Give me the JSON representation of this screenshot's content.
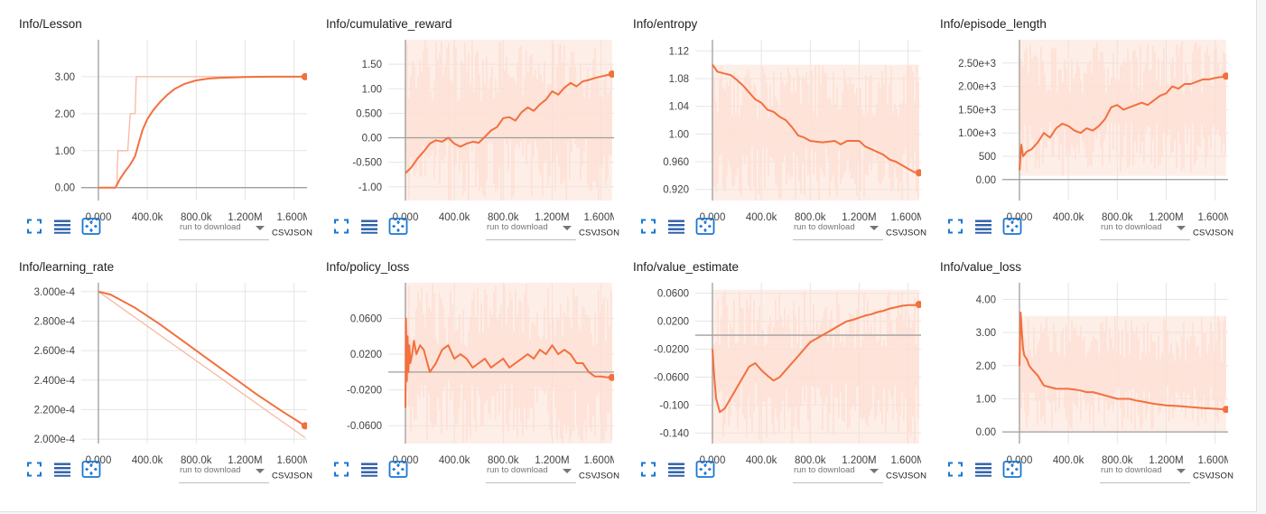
{
  "colors": {
    "smoothed": "#f2703e",
    "raw": "#fde0d5",
    "axis": "#9e9e9e",
    "grid": "#e5e5e5",
    "icon": "#1976d2",
    "icon_dark": "#2e5fa8"
  },
  "icons": [
    "fullscreen-icon",
    "list-icon",
    "fit-domain-icon"
  ],
  "download": {
    "placeholder": "run to download",
    "csv": "CSV",
    "json": "JSON"
  },
  "chart_data": [
    {
      "type": "line",
      "title": "Info/Lesson",
      "xlim": [
        -140000,
        1780000
      ],
      "ylim": [
        -0.35,
        4.0
      ],
      "xticks": [
        0,
        400000,
        800000,
        1200000,
        1600000
      ],
      "xtick_labels": [
        "0.000",
        "400.0k",
        "800.0k",
        "1.200M",
        "1.600M"
      ],
      "yticks": [
        0,
        1,
        2,
        3
      ],
      "ytick_labels": [
        "0.00",
        "1.00",
        "2.00",
        "3.00"
      ],
      "series": [
        {
          "x": [
            0,
            150000,
            160000,
            170000,
            230000,
            240000,
            260000,
            270000,
            300000,
            310000,
            1690000
          ],
          "y": [
            0,
            0,
            1,
            1,
            1,
            1,
            2,
            2,
            2,
            3,
            3
          ]
        },
        {
          "x": [
            0,
            140000,
            180000,
            220000,
            260000,
            300000,
            330000,
            360000,
            400000,
            450000,
            500000,
            560000,
            620000,
            700000,
            800000,
            900000,
            1000000,
            1200000,
            1400000,
            1690000
          ],
          "y": [
            0,
            0,
            0.25,
            0.45,
            0.62,
            0.85,
            1.2,
            1.55,
            1.85,
            2.1,
            2.3,
            2.5,
            2.66,
            2.8,
            2.9,
            2.95,
            2.97,
            2.99,
            3.0,
            3.0
          ]
        }
      ]
    },
    {
      "type": "line",
      "title": "Info/cumulative_reward",
      "xlim": [
        -140000,
        1780000
      ],
      "ylim": [
        -1.28,
        2.0
      ],
      "xticks": [
        0,
        400000,
        800000,
        1200000,
        1600000
      ],
      "xtick_labels": [
        "0.000",
        "400.0k",
        "800.0k",
        "1.200M",
        "1.600M"
      ],
      "yticks": [
        -1,
        -0.5,
        0,
        0.5,
        1,
        1.5
      ],
      "ytick_labels": [
        "-1.00",
        "-0.500",
        "0.00",
        "0.500",
        "1.00",
        "1.50"
      ],
      "raw_band": [
        -1.28,
        2.0
      ],
      "series": [
        {
          "x": [
            0,
            50000,
            100000,
            150000,
            200000,
            250000,
            300000,
            350000,
            400000,
            450000,
            500000,
            550000,
            600000,
            650000,
            700000,
            750000,
            800000,
            850000,
            900000,
            950000,
            1000000,
            1050000,
            1100000,
            1150000,
            1200000,
            1250000,
            1300000,
            1350000,
            1400000,
            1450000,
            1500000,
            1550000,
            1600000,
            1650000,
            1690000
          ],
          "y": [
            -0.72,
            -0.6,
            -0.42,
            -0.28,
            -0.12,
            -0.05,
            -0.08,
            0.0,
            -0.12,
            -0.18,
            -0.12,
            -0.08,
            -0.1,
            0.02,
            0.15,
            0.22,
            0.4,
            0.42,
            0.35,
            0.52,
            0.62,
            0.55,
            0.68,
            0.78,
            0.95,
            0.88,
            1.02,
            1.12,
            1.05,
            1.15,
            1.18,
            1.22,
            1.25,
            1.28,
            1.3
          ]
        }
      ]
    },
    {
      "type": "line",
      "title": "Info/entropy",
      "xlim": [
        -140000,
        1780000
      ],
      "ylim": [
        0.904,
        1.136
      ],
      "xticks": [
        0,
        400000,
        800000,
        1200000,
        1600000
      ],
      "xtick_labels": [
        "0.000",
        "400.0k",
        "800.0k",
        "1.200M",
        "1.600M"
      ],
      "yticks": [
        0.92,
        0.96,
        1.0,
        1.04,
        1.08,
        1.12
      ],
      "ytick_labels": [
        "0.920",
        "0.960",
        "1.00",
        "1.04",
        "1.08",
        "1.12"
      ],
      "raw_band": [
        0.904,
        1.1
      ],
      "series": [
        {
          "x": [
            0,
            40000,
            80000,
            150000,
            200000,
            250000,
            300000,
            350000,
            400000,
            450000,
            500000,
            550000,
            600000,
            650000,
            700000,
            750000,
            800000,
            900000,
            1000000,
            1050000,
            1100000,
            1200000,
            1250000,
            1300000,
            1400000,
            1450000,
            1500000,
            1550000,
            1600000,
            1650000,
            1690000
          ],
          "y": [
            1.1,
            1.09,
            1.088,
            1.085,
            1.078,
            1.07,
            1.06,
            1.05,
            1.045,
            1.035,
            1.032,
            1.025,
            1.02,
            1.01,
            0.998,
            0.995,
            0.99,
            0.988,
            0.99,
            0.985,
            0.99,
            0.99,
            0.982,
            0.978,
            0.97,
            0.963,
            0.96,
            0.955,
            0.95,
            0.945,
            0.944
          ]
        }
      ]
    },
    {
      "type": "line",
      "title": "Info/episode_length",
      "xlim": [
        -140000,
        1780000
      ],
      "ylim": [
        -450,
        3000
      ],
      "xticks": [
        0,
        400000,
        800000,
        1200000,
        1600000
      ],
      "xtick_labels": [
        "0.000",
        "400.0k",
        "800.0k",
        "1.200M",
        "1.600M"
      ],
      "yticks": [
        0,
        500,
        1000,
        1500,
        2000,
        2500
      ],
      "ytick_labels": [
        "0.00",
        "500",
        "1.00e+3",
        "1.50e+3",
        "2.00e+3",
        "2.50e+3"
      ],
      "raw_band": [
        80,
        3000
      ],
      "series": [
        {
          "x": [
            0,
            15000,
            30000,
            60000,
            100000,
            150000,
            200000,
            250000,
            300000,
            350000,
            400000,
            450000,
            500000,
            550000,
            600000,
            650000,
            700000,
            750000,
            800000,
            850000,
            900000,
            950000,
            1000000,
            1050000,
            1100000,
            1150000,
            1200000,
            1250000,
            1300000,
            1350000,
            1400000,
            1450000,
            1500000,
            1550000,
            1600000,
            1650000,
            1690000
          ],
          "y": [
            200,
            750,
            500,
            600,
            650,
            800,
            1000,
            900,
            1100,
            1200,
            1150,
            1050,
            1000,
            1100,
            1050,
            1150,
            1300,
            1550,
            1600,
            1500,
            1550,
            1600,
            1650,
            1600,
            1700,
            1800,
            1850,
            2000,
            1950,
            2050,
            2050,
            2100,
            2150,
            2150,
            2180,
            2200,
            2220
          ]
        }
      ]
    },
    {
      "type": "line",
      "title": "Info/learning_rate",
      "xlim": [
        -140000,
        1780000
      ],
      "ylim": [
        0.000197,
        0.000306
      ],
      "xticks": [
        0,
        400000,
        800000,
        1200000,
        1600000
      ],
      "xtick_labels": [
        "0.000",
        "400.0k",
        "800.0k",
        "1.200M",
        "1.600M"
      ],
      "yticks": [
        0.0002,
        0.00022,
        0.00024,
        0.00026,
        0.00028,
        0.0003
      ],
      "ytick_labels": [
        "2.000e-4",
        "2.200e-4",
        "2.400e-4",
        "2.600e-4",
        "2.800e-4",
        "3.000e-4"
      ],
      "series": [
        {
          "x": [
            0,
            1690000
          ],
          "y": [
            0.0003,
            0.000201
          ]
        },
        {
          "x": [
            0,
            100000,
            300000,
            500000,
            700000,
            900000,
            1100000,
            1300000,
            1500000,
            1690000
          ],
          "y": [
            0.0003,
            0.000298,
            0.000289,
            0.000278,
            0.000266,
            0.000254,
            0.000242,
            0.00023,
            0.000219,
            0.000209
          ]
        }
      ]
    },
    {
      "type": "line",
      "title": "Info/policy_loss",
      "xlim": [
        -140000,
        1780000
      ],
      "ylim": [
        -0.08,
        0.1
      ],
      "xticks": [
        0,
        400000,
        800000,
        1200000,
        1600000
      ],
      "xtick_labels": [
        "0.000",
        "400.0k",
        "800.0k",
        "1.200M",
        "1.600M"
      ],
      "yticks": [
        -0.06,
        -0.02,
        0.02,
        0.06
      ],
      "ytick_labels": [
        "-0.0600",
        "-0.0200",
        "0.0200",
        "0.0600"
      ],
      "raw_band": [
        -0.08,
        0.1
      ],
      "series": [
        {
          "x": [
            0,
            5000,
            12000,
            18000,
            25000,
            32000,
            40000,
            55000,
            70000,
            90000,
            120000,
            150000,
            200000,
            250000,
            300000,
            350000,
            400000,
            450000,
            500000,
            550000,
            600000,
            650000,
            700000,
            750000,
            800000,
            850000,
            900000,
            950000,
            1000000,
            1050000,
            1100000,
            1150000,
            1200000,
            1250000,
            1300000,
            1350000,
            1400000,
            1450000,
            1500000,
            1550000,
            1600000,
            1650000,
            1690000
          ],
          "y": [
            -0.04,
            0.06,
            -0.01,
            0.04,
            0.0,
            0.03,
            0.01,
            0.02,
            0.035,
            0.02,
            0.03,
            0.025,
            0.0,
            0.01,
            0.025,
            0.03,
            0.015,
            0.02,
            0.015,
            0.005,
            0.01,
            0.015,
            0.005,
            0.01,
            0.015,
            0.005,
            0.01,
            0.015,
            0.02,
            0.015,
            0.025,
            0.02,
            0.03,
            0.02,
            0.025,
            0.02,
            0.01,
            0.01,
            0.0,
            -0.005,
            -0.005,
            -0.006,
            -0.006
          ]
        }
      ]
    },
    {
      "type": "line",
      "title": "Info/value_estimate",
      "xlim": [
        -140000,
        1780000
      ],
      "ylim": [
        -0.155,
        0.075
      ],
      "xticks": [
        0,
        400000,
        800000,
        1200000,
        1600000
      ],
      "xtick_labels": [
        "0.000",
        "400.0k",
        "800.0k",
        "1.200M",
        "1.600M"
      ],
      "yticks": [
        -0.14,
        -0.1,
        -0.06,
        -0.02,
        0.02,
        0.06
      ],
      "ytick_labels": [
        "-0.140",
        "-0.100",
        "-0.0600",
        "-0.0200",
        "0.0200",
        "0.0600"
      ],
      "raw_band": [
        -0.155,
        0.065
      ],
      "series": [
        {
          "x": [
            0,
            15000,
            30000,
            60000,
            100000,
            150000,
            200000,
            250000,
            300000,
            350000,
            400000,
            450000,
            500000,
            550000,
            600000,
            650000,
            700000,
            750000,
            800000,
            850000,
            900000,
            950000,
            1000000,
            1050000,
            1100000,
            1150000,
            1200000,
            1250000,
            1300000,
            1350000,
            1400000,
            1450000,
            1500000,
            1550000,
            1600000,
            1650000,
            1690000
          ],
          "y": [
            -0.02,
            -0.06,
            -0.09,
            -0.11,
            -0.105,
            -0.09,
            -0.075,
            -0.06,
            -0.045,
            -0.04,
            -0.05,
            -0.058,
            -0.065,
            -0.06,
            -0.05,
            -0.04,
            -0.03,
            -0.02,
            -0.01,
            -0.005,
            0.0,
            0.005,
            0.01,
            0.015,
            0.02,
            0.022,
            0.025,
            0.028,
            0.03,
            0.033,
            0.035,
            0.038,
            0.04,
            0.042,
            0.043,
            0.043,
            0.044
          ]
        }
      ]
    },
    {
      "type": "line",
      "title": "Info/value_loss",
      "xlim": [
        -140000,
        1780000
      ],
      "ylim": [
        -0.35,
        4.5
      ],
      "xticks": [
        0,
        400000,
        800000,
        1200000,
        1600000
      ],
      "xtick_labels": [
        "0.000",
        "400.0k",
        "800.0k",
        "1.200M",
        "1.600M"
      ],
      "yticks": [
        0,
        1,
        2,
        3,
        4
      ],
      "ytick_labels": [
        "0.00",
        "1.00",
        "2.00",
        "3.00",
        "4.00"
      ],
      "raw_band": [
        0.0,
        3.5
      ],
      "series": [
        {
          "x": [
            0,
            10000,
            20000,
            30000,
            40000,
            60000,
            80000,
            100000,
            150000,
            200000,
            250000,
            300000,
            350000,
            400000,
            450000,
            500000,
            550000,
            600000,
            650000,
            700000,
            750000,
            800000,
            850000,
            900000,
            950000,
            1000000,
            1100000,
            1200000,
            1300000,
            1400000,
            1500000,
            1600000,
            1690000
          ],
          "y": [
            2.0,
            3.6,
            3.0,
            2.5,
            2.3,
            2.2,
            2.0,
            1.9,
            1.7,
            1.4,
            1.35,
            1.3,
            1.3,
            1.3,
            1.28,
            1.25,
            1.2,
            1.2,
            1.15,
            1.1,
            1.05,
            1.0,
            1.0,
            1.0,
            0.95,
            0.92,
            0.85,
            0.8,
            0.78,
            0.75,
            0.72,
            0.7,
            0.68
          ]
        }
      ]
    }
  ]
}
